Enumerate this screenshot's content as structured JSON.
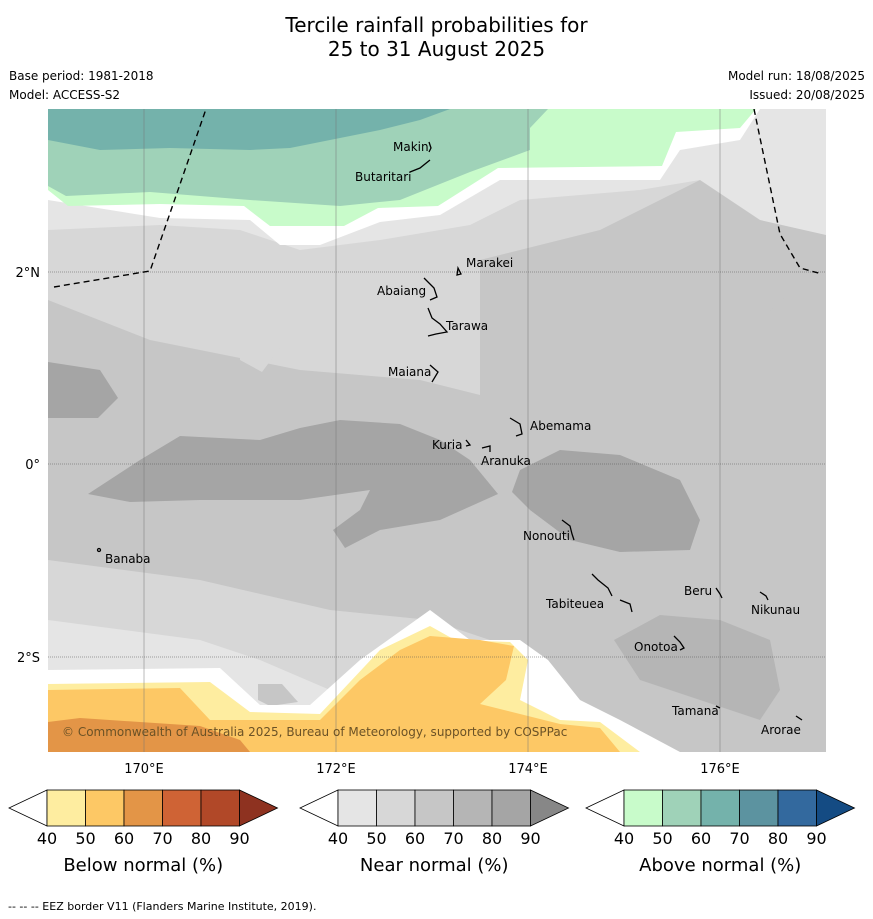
{
  "title": {
    "line1": "Tercile rainfall probabilities for",
    "line2": "25 to 31 August 2025"
  },
  "meta": {
    "base_period": "Base period: 1981-2018",
    "model": "Model: ACCESS-S2",
    "model_run": "Model run: 18/08/2025",
    "issued": "Issued: 20/08/2025"
  },
  "map": {
    "lat_labels": [
      "2°N",
      "0°",
      "2°S"
    ],
    "lon_labels": [
      "170°E",
      "172°E",
      "174°E",
      "176°E"
    ],
    "places": {
      "makin": "Makin",
      "butaritari": "Butaritari",
      "marakei": "Marakei",
      "abaiang": "Abaiang",
      "tarawa": "Tarawa",
      "maiana": "Maiana",
      "abemama": "Abemama",
      "kuria": "Kuria",
      "aranuka": "Aranuka",
      "nonouti": "Nonouti",
      "banaba": "Banaba",
      "tabiteuea": "Tabiteuea",
      "beru": "Beru",
      "nikunau": "Nikunau",
      "onotoa": "Onotoa",
      "tamana": "Tamana",
      "arorae": "Arorae"
    },
    "copyright": "© Commonwealth of Australia 2025, Bureau of Meteorology, supported by COSPPac"
  },
  "colorbars": [
    {
      "name": "below",
      "title": "Below normal (%)",
      "ticks": [
        "40",
        "50",
        "60",
        "70",
        "80",
        "90"
      ],
      "colors": [
        "#ffffff",
        "#feeda0",
        "#fdc865",
        "#e39547",
        "#cf6335",
        "#b14828",
        "#8e3220"
      ]
    },
    {
      "name": "near",
      "title": "Near normal (%)",
      "ticks": [
        "40",
        "50",
        "60",
        "70",
        "80",
        "90"
      ],
      "colors": [
        "#ffffff",
        "#e5e5e5",
        "#d7d7d7",
        "#c6c6c6",
        "#b5b5b5",
        "#a5a5a5",
        "#878787"
      ]
    },
    {
      "name": "above",
      "title": "Above normal (%)",
      "ticks": [
        "40",
        "50",
        "60",
        "70",
        "80",
        "90"
      ],
      "colors": [
        "#ffffff",
        "#c8fbca",
        "#9fd2b8",
        "#74b2ab",
        "#5c93a0",
        "#33699e",
        "#144b83"
      ]
    }
  ],
  "footer": "--  --  -- EEZ border V11 (Flanders Marine Institute, 2019)."
}
